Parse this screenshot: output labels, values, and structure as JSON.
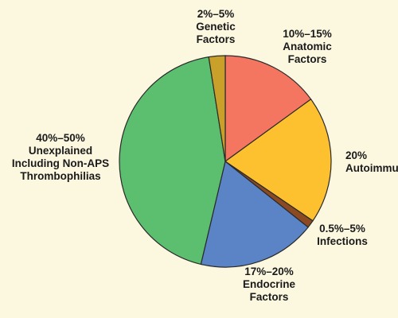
{
  "chart_data": {
    "type": "pie",
    "title": "",
    "start_angle_deg": -90,
    "direction": "clockwise",
    "colors": {
      "background": "#fcf8e0",
      "anatomic": "#f47560",
      "autoimmune": "#fdc130",
      "infections": "#8b4a22",
      "endocrine": "#5b84c6",
      "unexplained": "#5cbf70",
      "genetic": "#c9a02a"
    },
    "slices": [
      {
        "key": "anatomic",
        "value": 15.0,
        "label_lines": [
          "10%–15%",
          "Anatomic",
          "Factors"
        ]
      },
      {
        "key": "autoimmune",
        "value": 19.5,
        "label_lines": [
          "20%",
          "Autoimmune"
        ]
      },
      {
        "key": "infections",
        "value": 1.2,
        "label_lines": [
          "0.5%–5%",
          "Infections"
        ]
      },
      {
        "key": "endocrine",
        "value": 18.0,
        "label_lines": [
          "17%–20%",
          "Endocrine",
          "Factors"
        ]
      },
      {
        "key": "unexplained",
        "value": 43.8,
        "label_lines": [
          "40%–50%",
          "Unexplained",
          "Including Non-APS",
          "Thrombophilias"
        ]
      },
      {
        "key": "genetic",
        "value": 2.5,
        "label_lines": [
          "2%–5%",
          "Genetic",
          "Factors"
        ]
      }
    ]
  }
}
